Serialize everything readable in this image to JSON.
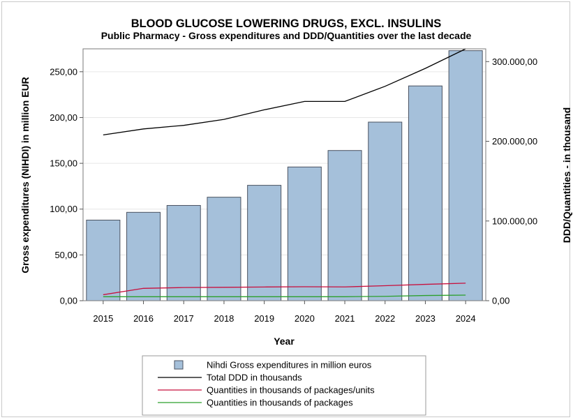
{
  "chart_data": {
    "type": "bar",
    "title": "BLOOD GLUCOSE LOWERING DRUGS, EXCL. INSULINS",
    "subtitle": "Public Pharmacy - Gross expenditures and DDD/Quantities over the last decade",
    "xlabel": "Year",
    "ylabel": "Gross expenditures (NIHDI) in million EUR",
    "y2label": "DDD/Quantities - in thousand",
    "categories": [
      "2015",
      "2016",
      "2017",
      "2018",
      "2019",
      "2020",
      "2021",
      "2022",
      "2023",
      "2024"
    ],
    "ylim": [
      0,
      275
    ],
    "y2lim": [
      0,
      316000
    ],
    "yticks": [
      0,
      50,
      100,
      150,
      200,
      250
    ],
    "ytick_labels": [
      "0,00",
      "50,00",
      "100,00",
      "150,00",
      "200,00",
      "250,00"
    ],
    "y2ticks": [
      0,
      100000,
      200000,
      300000
    ],
    "y2tick_labels": [
      "0,00",
      "100.000,00",
      "200.000,00",
      "300.000,00"
    ],
    "grid": true,
    "legend_position": "bottom",
    "series": [
      {
        "name": "Nihdi Gross expenditures in million euros",
        "type": "bar",
        "axis": "left",
        "color": "#a5c0da",
        "values": [
          88,
          96.5,
          104,
          113,
          126,
          146,
          164,
          195,
          234.5,
          273
        ]
      },
      {
        "name": "Total DDD in thousands",
        "type": "line",
        "axis": "right",
        "color": "#000000",
        "values": [
          208000,
          215500,
          220000,
          227500,
          239500,
          250000,
          250000,
          269000,
          291500,
          316000
        ]
      },
      {
        "name": "Quantities in thousands of packages/units",
        "type": "line",
        "axis": "right",
        "color": "#c8103e",
        "values": [
          7500,
          15500,
          16500,
          16800,
          17200,
          17500,
          17300,
          18800,
          20500,
          22000
        ]
      },
      {
        "name": "Quantities in thousands of packages",
        "type": "line",
        "axis": "right",
        "color": "#2ca02c",
        "values": [
          5000,
          5000,
          5000,
          5000,
          5000,
          5000,
          5000,
          5500,
          6500,
          7000
        ]
      }
    ]
  }
}
